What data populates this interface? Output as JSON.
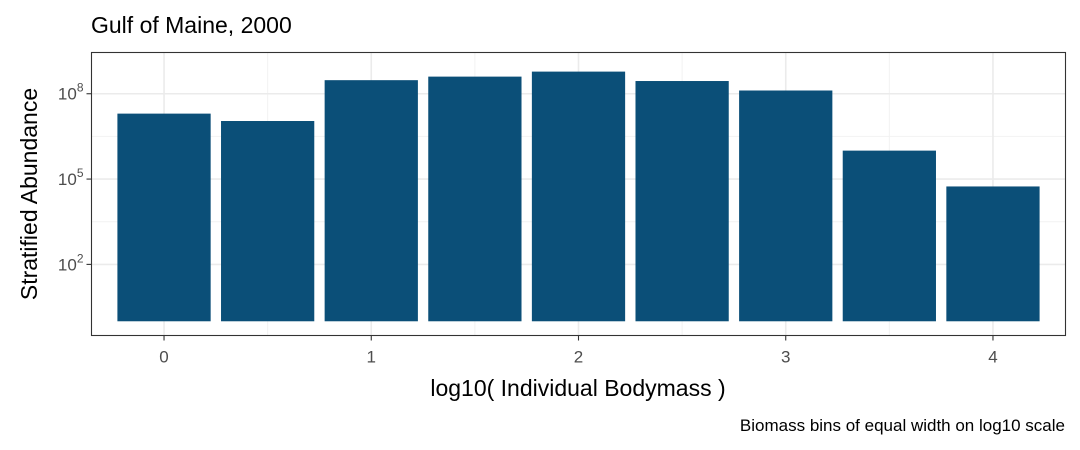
{
  "chart_data": {
    "type": "bar",
    "title": "Gulf of Maine, 2000",
    "xlabel": "log10( Individual Bodymass )",
    "ylabel": "Stratified Abundance",
    "caption": "Biomass bins of equal width on log10 scale",
    "y_scale": "log10",
    "bar_color": "#0b4f78",
    "grid": true,
    "x_ticks": [
      0,
      1,
      2,
      3,
      4
    ],
    "y_ticks": [
      {
        "base": "10",
        "exp": "2",
        "value": 100
      },
      {
        "base": "10",
        "exp": "5",
        "value": 100000
      },
      {
        "base": "10",
        "exp": "8",
        "value": 100000000
      }
    ],
    "xlim": [
      -0.35,
      4.35
    ],
    "ylim_log10": [
      -0.5,
      9.45
    ],
    "bar_floor_log10": 0,
    "bar_width": 0.45,
    "x": [
      0,
      0.5,
      1,
      1.5,
      2,
      2.5,
      3,
      3.5,
      4
    ],
    "values": [
      20000000,
      11000000,
      300000000,
      400000000,
      600000000,
      280000000,
      130000000,
      1000000,
      55000
    ]
  }
}
